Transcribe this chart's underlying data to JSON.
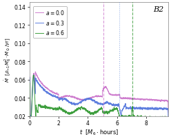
{
  "title": "B2",
  "xlabel": "t  [M_6 \\cdot hours]",
  "xlim": [
    0,
    9.5
  ],
  "ylim": [
    0.02,
    0.145
  ],
  "yticks": [
    0.02,
    0.04,
    0.06,
    0.08,
    0.1,
    0.12,
    0.14
  ],
  "xticks": [
    0,
    2,
    4,
    6,
    8
  ],
  "legend_labels": [
    "a = 0.0",
    "a = 0.3",
    "a = 0.6"
  ],
  "line_colors": [
    "#cc77cc",
    "#5577dd",
    "#339933"
  ],
  "vline_positions": [
    5.05,
    6.15,
    7.05
  ],
  "vline_colors": [
    "#cc77cc",
    "#7799dd",
    "#339933"
  ],
  "vline_styles": [
    "--",
    ":",
    "--"
  ],
  "background_color": "#f0f0f0",
  "seed": 12
}
